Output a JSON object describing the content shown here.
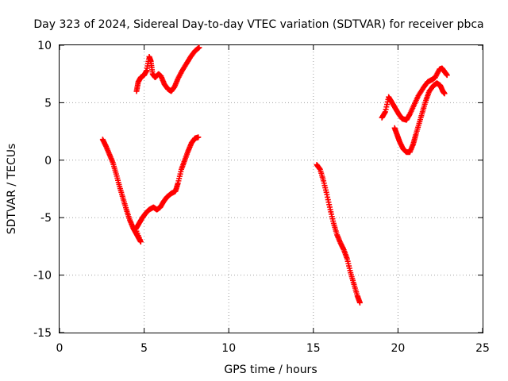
{
  "chart_data": {
    "type": "scatter",
    "title": "Day 323 of 2024, Sidereal Day-to-day VTEC variation (SDTVAR) for receiver pbca",
    "xlabel": "GPS time / hours",
    "ylabel": "SDTVAR / TECUs",
    "xlim": [
      0,
      25
    ],
    "ylim": [
      -15,
      10
    ],
    "xticks": [
      "0",
      "5",
      "10",
      "15",
      "20",
      "25"
    ],
    "yticks": [
      "-15",
      "-10",
      "-5",
      "0",
      "5",
      "10"
    ],
    "grid": true,
    "marker": "plus",
    "color": "#ff0000",
    "series": [
      {
        "points": [
          [
            2.55,
            1.8
          ],
          [
            2.75,
            1.2
          ],
          [
            2.95,
            0.5
          ],
          [
            3.15,
            -0.2
          ],
          [
            3.35,
            -1.2
          ],
          [
            3.55,
            -2.3
          ],
          [
            3.75,
            -3.3
          ],
          [
            3.95,
            -4.3
          ],
          [
            4.15,
            -5.2
          ],
          [
            4.35,
            -5.9
          ],
          [
            4.5,
            -6.3
          ],
          [
            4.65,
            -6.7
          ],
          [
            4.8,
            -7.1
          ],
          [
            4.5,
            -6.0
          ],
          [
            4.7,
            -5.5
          ],
          [
            4.9,
            -5.0
          ],
          [
            5.1,
            -4.6
          ],
          [
            5.3,
            -4.3
          ],
          [
            5.55,
            -4.1
          ],
          [
            5.75,
            -4.3
          ],
          [
            5.95,
            -4.1
          ],
          [
            6.15,
            -3.6
          ],
          [
            6.35,
            -3.2
          ],
          [
            6.6,
            -2.9
          ],
          [
            6.85,
            -2.7
          ],
          [
            7.0,
            -2.0
          ],
          [
            7.2,
            -0.8
          ],
          [
            7.4,
            0.0
          ],
          [
            7.6,
            0.8
          ],
          [
            7.8,
            1.5
          ],
          [
            8.0,
            1.9
          ],
          [
            8.2,
            2.0
          ]
        ]
      },
      {
        "points": [
          [
            4.55,
            6.0
          ],
          [
            4.65,
            6.8
          ],
          [
            4.8,
            7.2
          ],
          [
            5.0,
            7.4
          ],
          [
            5.15,
            7.8
          ],
          [
            5.3,
            9.0
          ],
          [
            5.4,
            8.6
          ],
          [
            5.5,
            7.5
          ],
          [
            5.65,
            7.2
          ],
          [
            5.85,
            7.5
          ],
          [
            6.0,
            7.3
          ],
          [
            6.2,
            6.6
          ],
          [
            6.4,
            6.2
          ],
          [
            6.6,
            6.0
          ],
          [
            6.8,
            6.4
          ],
          [
            7.0,
            7.1
          ],
          [
            7.25,
            7.8
          ],
          [
            7.5,
            8.4
          ],
          [
            7.75,
            9.0
          ],
          [
            8.0,
            9.5
          ],
          [
            8.25,
            9.8
          ]
        ]
      },
      {
        "points": [
          [
            15.2,
            -0.4
          ],
          [
            15.4,
            -0.8
          ],
          [
            15.6,
            -1.8
          ],
          [
            15.8,
            -3.0
          ],
          [
            16.0,
            -4.3
          ],
          [
            16.2,
            -5.5
          ],
          [
            16.4,
            -6.5
          ],
          [
            16.6,
            -7.2
          ],
          [
            16.8,
            -7.8
          ],
          [
            17.0,
            -8.6
          ],
          [
            17.2,
            -9.8
          ],
          [
            17.4,
            -10.8
          ],
          [
            17.6,
            -11.8
          ],
          [
            17.75,
            -12.4
          ]
        ]
      },
      {
        "points": [
          [
            19.05,
            3.7
          ],
          [
            19.25,
            4.2
          ],
          [
            19.45,
            5.5
          ],
          [
            19.65,
            5.0
          ],
          [
            19.85,
            4.5
          ],
          [
            20.05,
            4.0
          ],
          [
            20.25,
            3.6
          ],
          [
            20.5,
            3.5
          ],
          [
            20.7,
            4.0
          ],
          [
            20.95,
            4.8
          ],
          [
            21.2,
            5.6
          ],
          [
            21.5,
            6.3
          ],
          [
            21.75,
            6.8
          ],
          [
            22.0,
            7.0
          ],
          [
            22.2,
            7.2
          ],
          [
            22.45,
            7.9
          ],
          [
            22.6,
            8.0
          ],
          [
            22.75,
            7.7
          ],
          [
            22.9,
            7.4
          ]
        ]
      },
      {
        "points": [
          [
            19.8,
            2.8
          ],
          [
            19.95,
            2.2
          ],
          [
            20.1,
            1.6
          ],
          [
            20.3,
            1.0
          ],
          [
            20.5,
            0.7
          ],
          [
            20.7,
            0.7
          ],
          [
            20.9,
            1.4
          ],
          [
            21.05,
            2.2
          ],
          [
            21.25,
            3.2
          ],
          [
            21.45,
            4.2
          ],
          [
            21.65,
            5.2
          ],
          [
            21.85,
            6.0
          ],
          [
            22.1,
            6.5
          ],
          [
            22.3,
            6.7
          ],
          [
            22.5,
            6.5
          ],
          [
            22.65,
            6.0
          ],
          [
            22.75,
            5.8
          ]
        ]
      }
    ]
  }
}
